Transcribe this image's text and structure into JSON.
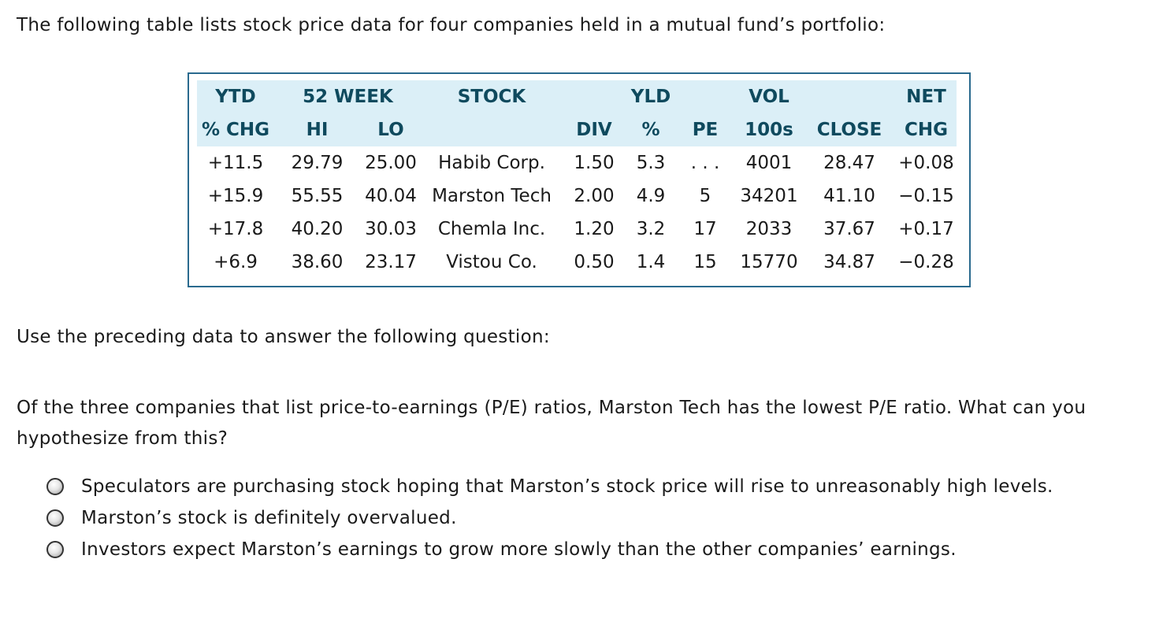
{
  "intro_text": "The following table lists stock price data for four companies held in a mutual fund’s portfolio:",
  "table": {
    "header_row1": [
      "YTD",
      "52 WEEK",
      "STOCK",
      "",
      "YLD",
      "",
      "VOL",
      "",
      "NET"
    ],
    "header_row2": [
      "% CHG",
      "HI",
      "LO",
      "",
      "DIV",
      "%",
      "PE",
      "100s",
      "CLOSE",
      "CHG"
    ],
    "rows": [
      [
        "+11.5",
        "29.79",
        "25.00",
        "Habib Corp.",
        "1.50",
        "5.3",
        ". . .",
        "4001",
        "28.47",
        "+0.08"
      ],
      [
        "+15.9",
        "55.55",
        "40.04",
        "Marston Tech",
        "2.00",
        "4.9",
        "5",
        "34201",
        "41.10",
        "−0.15"
      ],
      [
        "+17.8",
        "40.20",
        "30.03",
        "Chemla Inc.",
        "1.20",
        "3.2",
        "17",
        "2033",
        "37.67",
        "+0.17"
      ],
      [
        "+6.9",
        "38.60",
        "23.17",
        "Vistou Co.",
        "0.50",
        "1.4",
        "15",
        "15770",
        "34.87",
        "−0.28"
      ]
    ]
  },
  "prompt_text": "Use the preceding data to answer the following question:",
  "question_text": "Of the three companies that list price-to-earnings (P/E) ratios, Marston Tech has the lowest P/E ratio. What can you hypothesize from this?",
  "options": [
    "Speculators are purchasing stock hoping that Marston’s stock price will rise to unreasonably high levels.",
    "Marston’s stock is definitely overvalued.",
    "Investors expect Marston’s earnings to grow more slowly than the other companies’ earnings."
  ],
  "colors": {
    "header_bg": "#dbeff7",
    "header_text": "#0f4a5e",
    "border": "#2a6a8e"
  }
}
